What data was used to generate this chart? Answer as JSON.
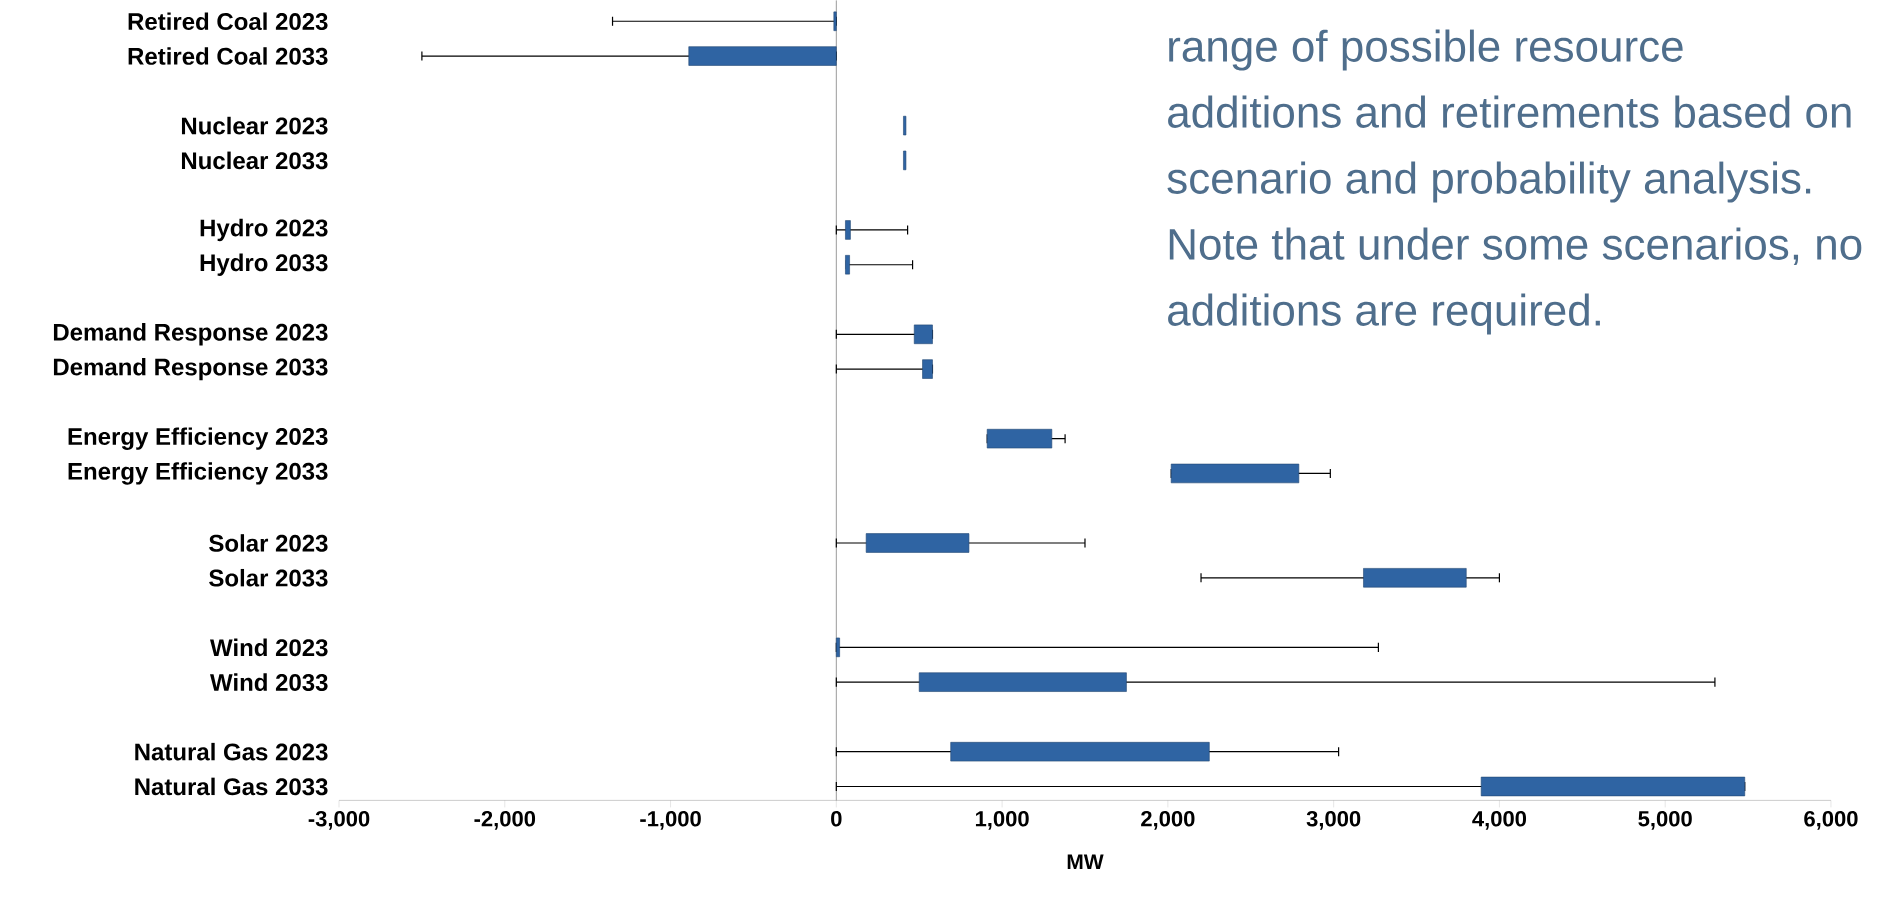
{
  "chart_data": {
    "type": "bar",
    "orientation": "horizontal",
    "xlabel": "MW",
    "categories": [
      "Retired Coal 2023",
      "Retired Coal 2033",
      null,
      "Nuclear 2023",
      "Nuclear 2033",
      null,
      "Hydro 2023",
      "Hydro 2033",
      null,
      "Demand Response 2023",
      "Demand Response 2033",
      null,
      "Energy Efficiency 2023",
      "Energy Efficiency 2033",
      null,
      "Solar 2023",
      "Solar 2033",
      null,
      "Wind 2023",
      "Wind 2033",
      null,
      "Natural Gas 2023",
      "Natural Gas 2033"
    ],
    "base": [
      -15,
      -890,
      null,
      405,
      405,
      null,
      55,
      55,
      null,
      470,
      520,
      null,
      910,
      2020,
      null,
      180,
      3180,
      null,
      0,
      500,
      null,
      690,
      3890
    ],
    "values": [
      15,
      890,
      null,
      15,
      15,
      null,
      30,
      25,
      null,
      110,
      60,
      null,
      390,
      770,
      null,
      620,
      620,
      null,
      20,
      1250,
      null,
      1560,
      1590
    ],
    "errors": [
      [
        -1350,
        0
      ],
      [
        -2500,
        0
      ],
      null,
      null,
      null,
      null,
      [
        0,
        430
      ],
      [
        60,
        460
      ],
      null,
      [
        0,
        580
      ],
      [
        0,
        580
      ],
      null,
      [
        910,
        1380
      ],
      [
        2020,
        2980
      ],
      null,
      [
        0,
        1500
      ],
      [
        2200,
        4000
      ],
      null,
      [
        0,
        3270
      ],
      [
        0,
        5300
      ],
      null,
      [
        0,
        3030
      ],
      [
        0,
        5480
      ]
    ],
    "color": "#2f64a3",
    "xlim": [
      -3000,
      6000
    ],
    "xticks": [
      {
        "value": -3000,
        "label": "-3,000"
      },
      {
        "value": -2000,
        "label": "-2,000"
      },
      {
        "value": -1000,
        "label": "-1,000"
      },
      0,
      {
        "value": 1000,
        "label": "1,000"
      },
      {
        "value": 2000,
        "label": "2,000"
      },
      {
        "value": 3000,
        "label": "3,000"
      },
      {
        "value": 4000,
        "label": "4,000"
      },
      {
        "value": 5000,
        "label": "5,000"
      },
      {
        "value": 6000,
        "label": "6,000"
      }
    ],
    "annotations": [
      "range of possible resource additions and retirements based on scenario and probability analysis. Note that under some scenarios, no additions are required."
    ]
  }
}
